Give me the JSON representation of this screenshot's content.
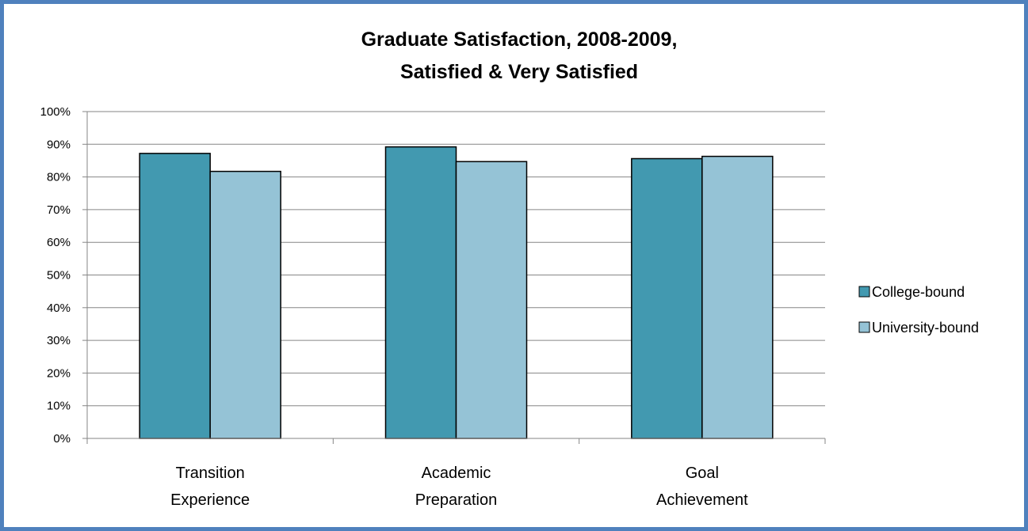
{
  "chart_data": {
    "type": "bar",
    "title": [
      "Graduate Satisfaction, 2008-2009,",
      "Satisfied & Very Satisfied"
    ],
    "categories": [
      [
        "Transition",
        "Experience"
      ],
      [
        "Academic",
        "Preparation"
      ],
      [
        "Goal",
        "Achievement"
      ]
    ],
    "series": [
      {
        "name": "College-bound",
        "color": "#4299b0",
        "values": [
          87.2,
          89.2,
          85.6
        ]
      },
      {
        "name": "University-bound",
        "color": "#95c3d6",
        "values": [
          81.7,
          84.7,
          86.3
        ]
      }
    ],
    "ylim": [
      0,
      100
    ],
    "yticks": [
      "0%",
      "10%",
      "20%",
      "30%",
      "40%",
      "50%",
      "60%",
      "70%",
      "80%",
      "90%",
      "100%"
    ],
    "grid": true,
    "legend_position": "right"
  },
  "colors": {
    "frame_border": "#4f81bd",
    "gridline": "#868686",
    "bar_outline": "#000000"
  }
}
